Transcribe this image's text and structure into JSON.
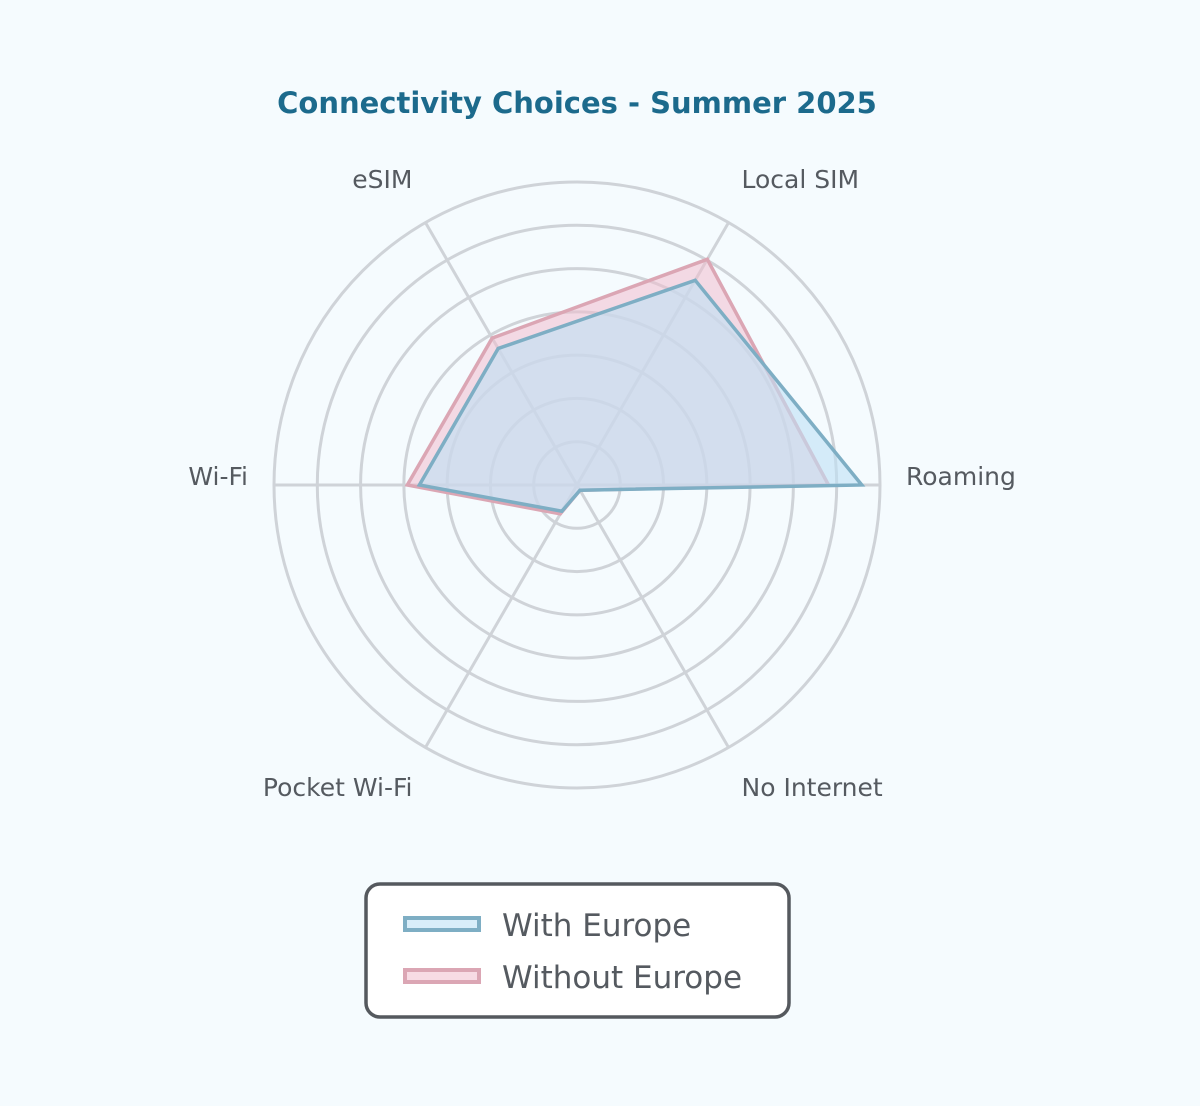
{
  "chart_data": {
    "type": "radar",
    "title": "Connectivity Choices - Summer 2025",
    "axes": [
      "Roaming",
      "Local SIM",
      "eSIM",
      "Wi-Fi",
      "Pocket Wi-Fi",
      "No Internet"
    ],
    "rmax": 100,
    "rings": 7,
    "series": [
      {
        "name": "With Europe",
        "values": [
          94,
          78,
          52,
          52,
          10,
          2
        ],
        "stroke": "#7eaec4",
        "fill": "rgba(190,225,245,0.6)"
      },
      {
        "name": "Without Europe",
        "values": [
          83,
          86,
          56,
          56,
          11,
          2
        ],
        "stroke": "#dba6b4",
        "fill": "rgba(240,190,205,0.55)"
      }
    ],
    "legend_position": "bottom",
    "colors": {
      "title": "#1c6a8c",
      "grid": "#cfd3d8",
      "legend_border": "#55595e"
    }
  }
}
